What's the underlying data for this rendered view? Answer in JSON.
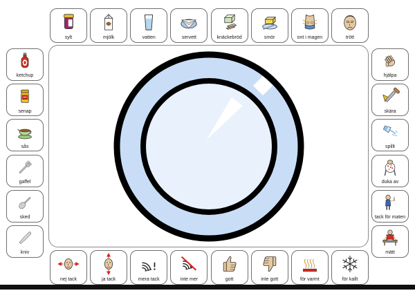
{
  "board": {
    "top_row": [
      {
        "label": "sylt",
        "icon": "jam-jar-icon"
      },
      {
        "label": "mjölk",
        "icon": "milk-carton-icon"
      },
      {
        "label": "vatten",
        "icon": "water-glass-icon"
      },
      {
        "label": "servett",
        "icon": "napkin-icon"
      },
      {
        "label": "knäckebröd",
        "icon": "crispbread-icon"
      },
      {
        "label": "smör",
        "icon": "butter-icon"
      },
      {
        "label": "ont i magen",
        "icon": "stomach-ache-icon"
      },
      {
        "label": "trött",
        "icon": "tired-face-icon"
      }
    ],
    "left_column": [
      {
        "label": "ketchup",
        "icon": "ketchup-bottle-icon"
      },
      {
        "label": "senap",
        "icon": "mustard-jar-icon"
      },
      {
        "label": "sås",
        "icon": "gravy-boat-icon"
      },
      {
        "label": "gaffel",
        "icon": "fork-icon"
      },
      {
        "label": "sked",
        "icon": "spoon-icon"
      },
      {
        "label": "kniv",
        "icon": "knife-icon"
      }
    ],
    "right_column": [
      {
        "label": "hjälpa",
        "icon": "helping-hand-icon"
      },
      {
        "label": "skära",
        "icon": "cutting-icon"
      },
      {
        "label": "spillt",
        "icon": "spilled-glass-icon"
      },
      {
        "label": "duka av",
        "icon": "clear-table-icon"
      },
      {
        "label": "tack för maten",
        "icon": "thanks-for-food-icon"
      },
      {
        "label": "mätt",
        "icon": "full-person-icon"
      }
    ],
    "bottom_row": [
      {
        "label": "nej tack",
        "icon": "head-shake-icon"
      },
      {
        "label": "ja tack",
        "icon": "head-nod-icon"
      },
      {
        "label": "mera tack",
        "icon": "more-swirl-icon"
      },
      {
        "label": "inte mer",
        "icon": "no-more-swirl-icon"
      },
      {
        "label": "gott",
        "icon": "thumbs-up-icon"
      },
      {
        "label": "inte gott",
        "icon": "thumbs-down-icon"
      },
      {
        "label": "för varmt",
        "icon": "heat-icon"
      },
      {
        "label": "för kallt",
        "icon": "snowflake-icon"
      }
    ],
    "plate": {
      "rim_color": "#c9def6",
      "inner_color": "#e9f1fc",
      "outline_color": "#000000",
      "highlight_color": "#ffffff"
    }
  }
}
